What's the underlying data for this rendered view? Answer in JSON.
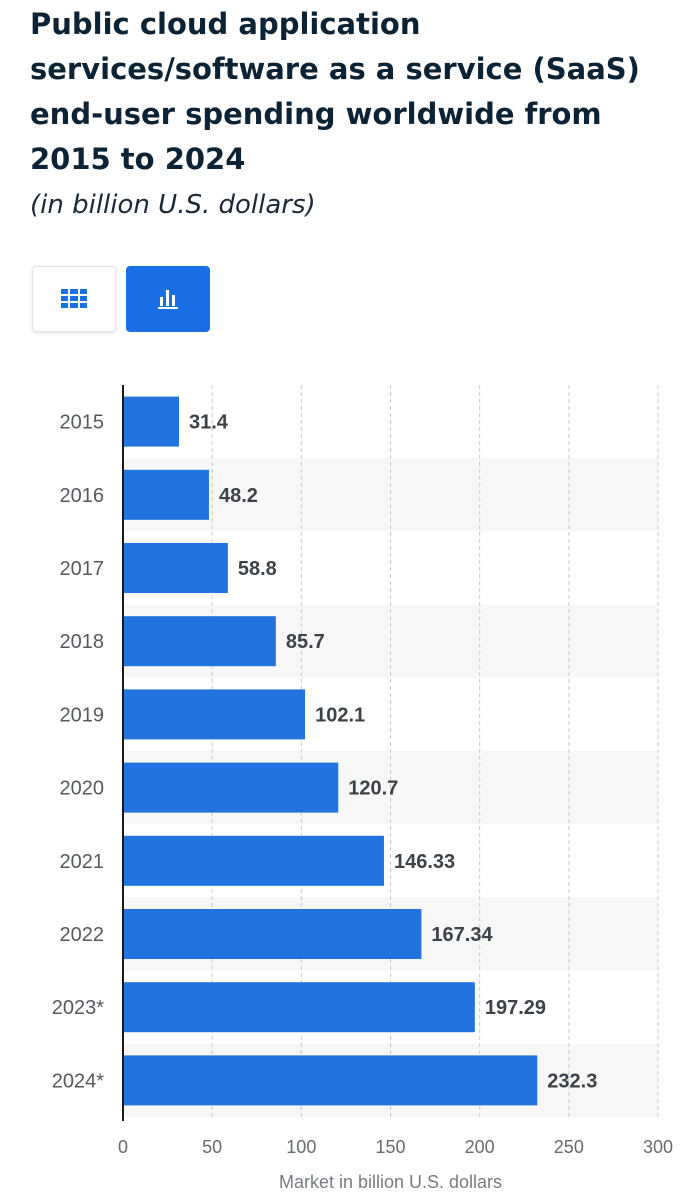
{
  "toggles": {
    "table_icon": "grid-icon",
    "chart_icon": "bar-chart-icon",
    "active": "chart",
    "active_color": "#1a6fe6"
  },
  "chart_data": {
    "type": "bar",
    "orientation": "horizontal",
    "title": "Public cloud application services/software as a service (SaaS) end-user spending worldwide from 2015 to 2024",
    "subtitle": "(in billion U.S. dollars)",
    "categories": [
      "2015",
      "2016",
      "2017",
      "2018",
      "2019",
      "2020",
      "2021",
      "2022",
      "2023*",
      "2024*"
    ],
    "values": [
      31.4,
      48.2,
      58.8,
      85.7,
      102.1,
      120.7,
      146.33,
      167.34,
      197.29,
      232.3
    ],
    "value_labels": [
      "31.4",
      "48.2",
      "58.8",
      "85.7",
      "102.1",
      "120.7",
      "146.33",
      "167.34",
      "197.29",
      "232.3"
    ],
    "xlabel": "Market in billion U.S. dollars",
    "ylabel": "",
    "xlim": [
      0,
      300
    ],
    "xticks": [
      0,
      50,
      100,
      150,
      200,
      250,
      300
    ],
    "grid": true,
    "bar_color": "#2272e0"
  }
}
